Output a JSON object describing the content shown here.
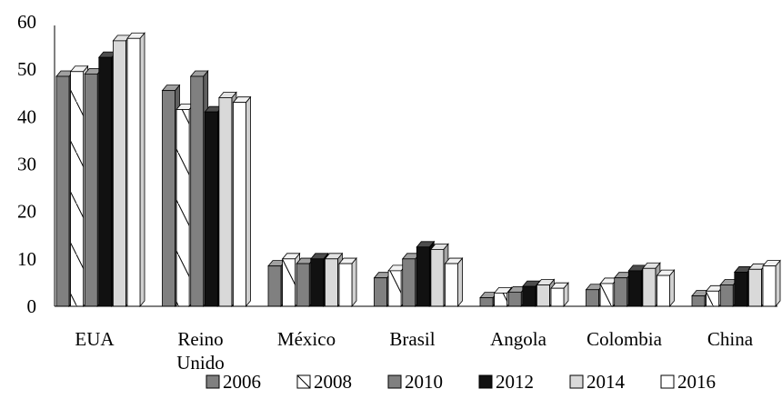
{
  "chart_data": {
    "type": "bar",
    "style": "3d-clustered",
    "title": "",
    "xlabel": "",
    "ylabel": "",
    "ylim": [
      0,
      60
    ],
    "yticks": [
      "0",
      "10",
      "20",
      "30",
      "40",
      "50",
      "60"
    ],
    "grid": false,
    "legend_position": "bottom",
    "categories": [
      [
        "EUA"
      ],
      [
        "Reino",
        "Unido"
      ],
      [
        "México"
      ],
      [
        "Brasil"
      ],
      [
        "Angola"
      ],
      [
        "Colombia"
      ],
      [
        "China"
      ]
    ],
    "series": [
      {
        "name": "2006",
        "fill": "#808080",
        "pattern": "solid",
        "values": [
          48.5,
          45.5,
          8.5,
          6.0,
          1.8,
          3.5,
          2.2
        ]
      },
      {
        "name": "2008",
        "fill": "#ffffff",
        "pattern": "hatch",
        "values": [
          49.5,
          41.5,
          10.0,
          7.5,
          2.8,
          4.8,
          3.2
        ]
      },
      {
        "name": "2010",
        "fill": "#808080",
        "pattern": "solid",
        "values": [
          49.0,
          48.5,
          9.0,
          10.0,
          3.0,
          6.0,
          4.5
        ]
      },
      {
        "name": "2012",
        "fill": "#111111",
        "pattern": "solid",
        "values": [
          52.5,
          41.0,
          10.0,
          12.5,
          4.2,
          7.5,
          7.2
        ]
      },
      {
        "name": "2014",
        "fill": "#d9d9d9",
        "pattern": "solid",
        "values": [
          56.0,
          44.0,
          10.0,
          12.0,
          4.5,
          8.0,
          7.8
        ]
      },
      {
        "name": "2016",
        "fill": "#ffffff",
        "pattern": "solid",
        "values": [
          56.5,
          43.0,
          9.0,
          9.0,
          3.8,
          6.5,
          8.5
        ]
      }
    ]
  }
}
